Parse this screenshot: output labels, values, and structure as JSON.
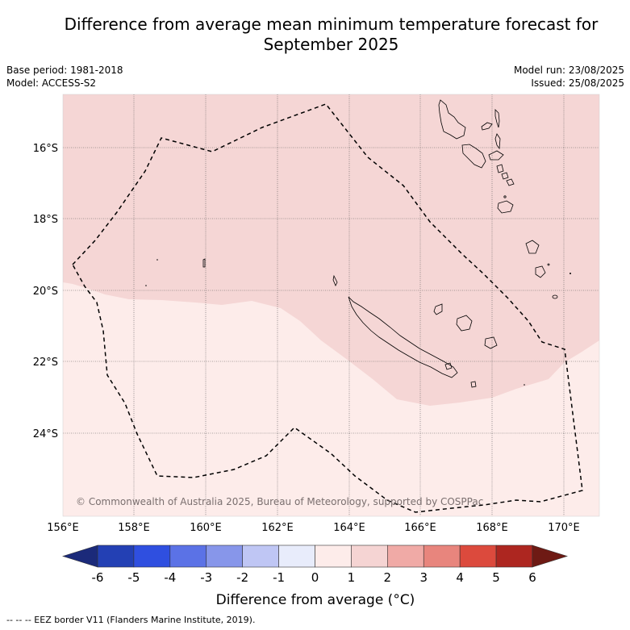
{
  "title_line1": "Difference from average mean minimum temperature forecast for",
  "title_line2": "September 2025",
  "base_period": "Base period: 1981-2018",
  "model": "Model: ACCESS-S2",
  "model_run": "Model run: 23/08/2025",
  "issued": "Issued: 25/08/2025",
  "copyright": "© Commonwealth of Australia 2025, Bureau of Meteorology, supported by COSPPac",
  "lat_labels": [
    "16°S",
    "18°S",
    "20°S",
    "22°S",
    "24°S"
  ],
  "lon_labels": [
    "156°E",
    "158°E",
    "160°E",
    "162°E",
    "164°E",
    "166°E",
    "168°E",
    "170°E"
  ],
  "colorbar": {
    "ticks": [
      "-6",
      "-5",
      "-4",
      "-3",
      "-2",
      "-1",
      "0",
      "1",
      "2",
      "3",
      "4",
      "5",
      "6"
    ],
    "colors": [
      "#1b2a7a",
      "#2340b4",
      "#2f4fe0",
      "#5b72e6",
      "#8796ea",
      "#bfc6f4",
      "#e8ecfb",
      "#fdecea",
      "#f5d4d3",
      "#f0aaa6",
      "#e8857d",
      "#dc4a3d",
      "#ad2620",
      "#6e1a14"
    ],
    "label": "Difference from average (",
    "label_unit": "°C)"
  },
  "legend_colors": {
    "zone_0_1": "#fdecea",
    "zone_1_2": "#f5d6d5"
  },
  "footnote": "--  --  -- EEZ border V11 (Flanders Marine Institute, 2019)."
}
